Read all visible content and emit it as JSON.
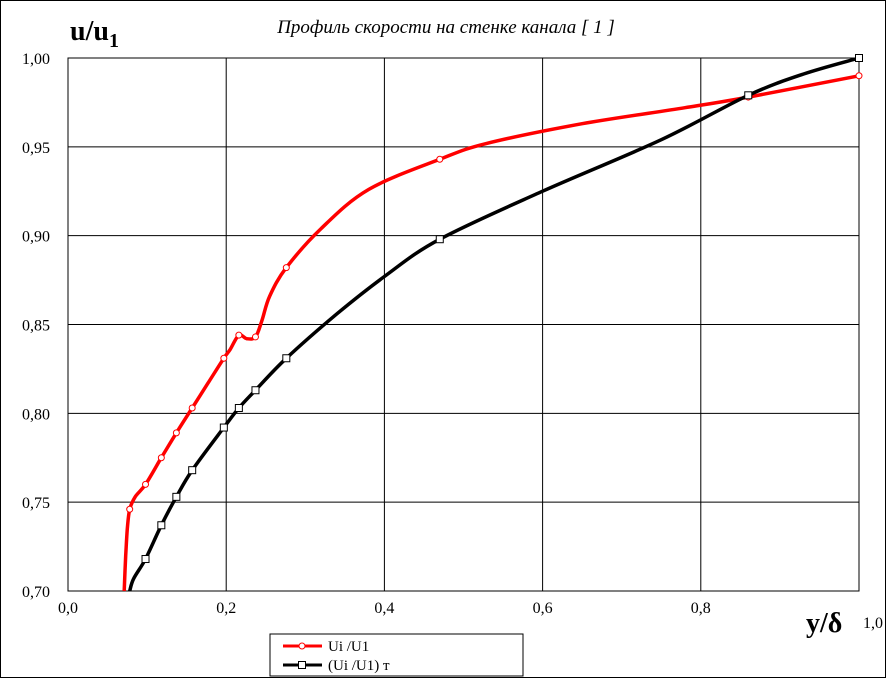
{
  "chart_data": {
    "type": "line",
    "title": "Профиль скорости на стенке канала [ 1 ]",
    "ylabel_main": "u/u",
    "ylabel_sub": "1",
    "xlabel_main": "y/δ",
    "xlim": [
      0,
      1.0
    ],
    "ylim": [
      0.7,
      1.0
    ],
    "x_ticks": [
      0.0,
      0.2,
      0.4,
      0.6,
      0.8,
      1.0
    ],
    "x_tick_labels": [
      "0,0",
      "0,2",
      "0,4",
      "0,6",
      "0,8",
      "1,0"
    ],
    "y_ticks": [
      0.7,
      0.75,
      0.8,
      0.85,
      0.9,
      0.95,
      1.0
    ],
    "y_tick_labels": [
      "0,70",
      "0,75",
      "0,80",
      "0,85",
      "0,90",
      "0,95",
      "1,00"
    ],
    "grid": true,
    "legend_position": "bottom-center",
    "series": [
      {
        "name": "Ui /U1",
        "color": "#ff0000",
        "marker": "circle",
        "curve": [
          [
            0.071,
            0.7
          ],
          [
            0.073,
            0.72
          ],
          [
            0.075,
            0.735
          ],
          [
            0.078,
            0.746
          ],
          [
            0.085,
            0.753
          ],
          [
            0.098,
            0.76
          ],
          [
            0.118,
            0.775
          ],
          [
            0.137,
            0.789
          ],
          [
            0.157,
            0.803
          ],
          [
            0.177,
            0.817
          ],
          [
            0.197,
            0.831
          ],
          [
            0.205,
            0.836
          ],
          [
            0.216,
            0.844
          ],
          [
            0.226,
            0.842
          ],
          [
            0.237,
            0.843
          ],
          [
            0.245,
            0.852
          ],
          [
            0.255,
            0.866
          ],
          [
            0.276,
            0.882
          ],
          [
            0.32,
            0.904
          ],
          [
            0.38,
            0.926
          ],
          [
            0.47,
            0.943
          ],
          [
            0.53,
            0.952
          ],
          [
            0.65,
            0.963
          ],
          [
            0.78,
            0.972
          ],
          [
            0.86,
            0.978
          ],
          [
            1.0,
            0.99
          ]
        ],
        "points": [
          [
            0.078,
            0.746
          ],
          [
            0.098,
            0.76
          ],
          [
            0.118,
            0.775
          ],
          [
            0.137,
            0.789
          ],
          [
            0.157,
            0.803
          ],
          [
            0.197,
            0.831
          ],
          [
            0.216,
            0.844
          ],
          [
            0.237,
            0.843
          ],
          [
            0.276,
            0.882
          ],
          [
            0.47,
            0.943
          ],
          [
            0.86,
            0.978
          ],
          [
            1.0,
            0.99
          ]
        ]
      },
      {
        "name": "(Ui /U1) т",
        "color": "#000000",
        "marker": "square",
        "curve": [
          [
            0.078,
            0.7
          ],
          [
            0.083,
            0.707
          ],
          [
            0.098,
            0.718
          ],
          [
            0.118,
            0.737
          ],
          [
            0.137,
            0.753
          ],
          [
            0.157,
            0.768
          ],
          [
            0.197,
            0.792
          ],
          [
            0.216,
            0.803
          ],
          [
            0.237,
            0.813
          ],
          [
            0.276,
            0.831
          ],
          [
            0.34,
            0.856
          ],
          [
            0.4,
            0.877
          ],
          [
            0.47,
            0.898
          ],
          [
            0.6,
            0.925
          ],
          [
            0.75,
            0.954
          ],
          [
            0.86,
            0.979
          ],
          [
            0.93,
            0.991
          ],
          [
            1.0,
            1.0
          ]
        ],
        "points": [
          [
            0.098,
            0.718
          ],
          [
            0.118,
            0.737
          ],
          [
            0.137,
            0.753
          ],
          [
            0.157,
            0.768
          ],
          [
            0.197,
            0.792
          ],
          [
            0.216,
            0.803
          ],
          [
            0.237,
            0.813
          ],
          [
            0.276,
            0.831
          ],
          [
            0.47,
            0.898
          ],
          [
            0.86,
            0.979
          ],
          [
            1.0,
            1.0
          ]
        ]
      }
    ]
  }
}
